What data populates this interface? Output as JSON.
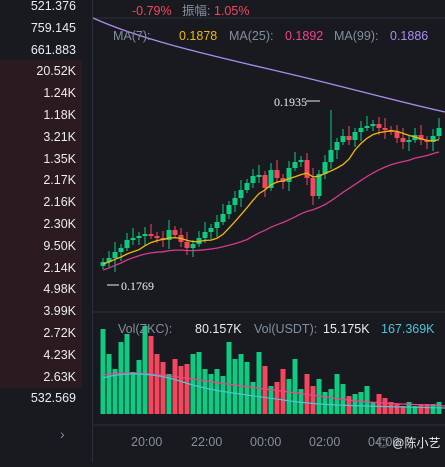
{
  "header": {
    "change": "-0.79%",
    "amplitude_label": "振幅:",
    "amplitude": "1.05%"
  },
  "order_volumes": [
    "521.376",
    "759.145",
    "661.883",
    "20.52K",
    "1.24K",
    "1.18K",
    "3.21K",
    "1.35K",
    "2.17K",
    "2.16K",
    "2.30K",
    "9.50K",
    "2.14K",
    "4.98K",
    "3.99K",
    "2.72K",
    "4.23K",
    "2.63K",
    "532.569"
  ],
  "ma": [
    {
      "label": "MA(7):",
      "value": "0.1878",
      "color": "#f0b90b"
    },
    {
      "label": "MA(25):",
      "value": "0.1892",
      "color": "#f6408c"
    },
    {
      "label": "MA(99):",
      "value": "0.1886",
      "color": "#a98cf0"
    }
  ],
  "price_labels": {
    "high": "0.1935",
    "low": "0.1769"
  },
  "volume_legend": {
    "vol_coin_label": "Vol(ZKC):",
    "vol_coin": "80.157K",
    "vol_usdt_label": "Vol(USDT):",
    "vol_usdt": "15.175K",
    "extra": "167.369K"
  },
  "time_ticks": [
    "20:00",
    "22:00",
    "00:00",
    "02:00",
    "04:00"
  ],
  "watermark": "@陈小艺",
  "colors": {
    "up": "#0ecb81",
    "down": "#f6465d",
    "bg": "#181a20"
  }
}
